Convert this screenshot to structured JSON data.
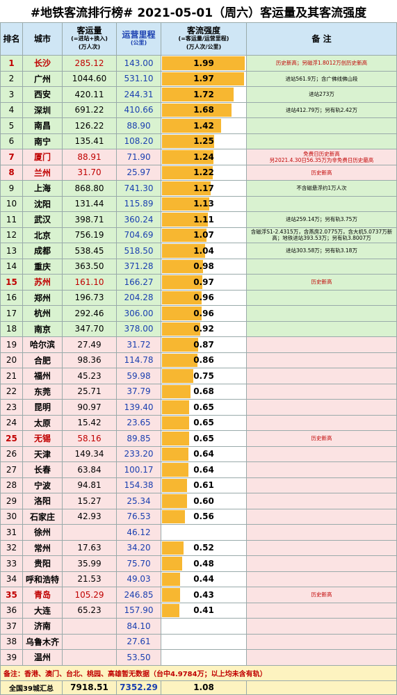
{
  "title": "#地铁客流排行榜# 2021-05-01（周六）客运量及其客流强度",
  "table": {
    "header": [
      [
        "排名"
      ],
      [
        "城市"
      ],
      [
        "客运量",
        "(=进站+换入)",
        "(万人次)"
      ],
      [
        "运营里程",
        "(公里)"
      ],
      [
        "客流强度",
        "(=客运量/运营里程)",
        "(万人次/公里)"
      ],
      [
        "备 注"
      ]
    ],
    "rows": [
      {
        "cells": [
          "1",
          "长沙",
          "285.12",
          "143.00",
          "1.99",
          "历史新高；另磁浮1.8012万创历史新高"
        ],
        "color": "#d9f2d0",
        "red": true
      },
      {
        "cells": [
          "2",
          "广州",
          "1044.60",
          "531.10",
          "1.97",
          "进站561.9万；含广佛线佛山段"
        ],
        "color": "#d9f2d0",
        "red": false
      },
      {
        "cells": [
          "3",
          "西安",
          "420.11",
          "244.31",
          "1.72",
          "进站273万"
        ],
        "color": "#d9f2d0",
        "red": false
      },
      {
        "cells": [
          "4",
          "深圳",
          "691.22",
          "410.66",
          "1.68",
          "进站412.79万；另有轨2.42万"
        ],
        "color": "#d9f2d0",
        "red": false
      },
      {
        "cells": [
          "5",
          "南昌",
          "126.22",
          "88.90",
          "1.42",
          null
        ],
        "color": "#d9f2d0",
        "red": false
      },
      {
        "cells": [
          "6",
          "南宁",
          "135.41",
          "108.20",
          "1.25",
          null
        ],
        "color": "#d9f2d0",
        "red": false
      },
      {
        "cells": [
          "7",
          "厦门",
          "88.91",
          "71.90",
          "1.24",
          "免费日历史新高\n另2021.4.30日56.35万为非免费日历史最高"
        ],
        "color": "#fbe3e3",
        "red": true
      },
      {
        "cells": [
          "8",
          "兰州",
          "31.70",
          "25.97",
          "1.22",
          "历史新高"
        ],
        "color": "#fbe3e3",
        "red": true
      },
      {
        "cells": [
          "9",
          "上海",
          "868.80",
          "741.30",
          "1.17",
          "不含磁悬浮约1万人次"
        ],
        "color": "#d9f2d0",
        "red": false
      },
      {
        "cells": [
          "10",
          "沈阳",
          "131.44",
          "115.89",
          "1.13",
          null
        ],
        "color": "#d9f2d0",
        "red": false
      },
      {
        "cells": [
          "11",
          "武汉",
          "398.71",
          "360.24",
          "1.11",
          "进站259.14万；另有轨3.75万"
        ],
        "color": "#d9f2d0",
        "red": false
      },
      {
        "cells": [
          "12",
          "北京",
          "756.19",
          "704.69",
          "1.07",
          "含磁浮S1-2.4315万，含燕房2.0775万，含大机5.0737万新高；地铁进站393.53万；另有轨3.8007万"
        ],
        "color": "#d9f2d0",
        "red": false
      },
      {
        "cells": [
          "13",
          "成都",
          "538.45",
          "518.50",
          "1.04",
          "进站303.58万；另有轨3.18万"
        ],
        "color": "#d9f2d0",
        "red": false
      },
      {
        "cells": [
          "14",
          "重庆",
          "363.50",
          "371.28",
          "0.98",
          null
        ],
        "color": "#d9f2d0",
        "red": false
      },
      {
        "cells": [
          "15",
          "苏州",
          "161.10",
          "166.27",
          "0.97",
          "历史新高"
        ],
        "color": "#d9f2d0",
        "red": true
      },
      {
        "cells": [
          "16",
          "郑州",
          "196.73",
          "204.28",
          "0.96",
          null
        ],
        "color": "#d9f2d0",
        "red": false
      },
      {
        "cells": [
          "17",
          "杭州",
          "292.46",
          "306.00",
          "0.96",
          null
        ],
        "color": "#d9f2d0",
        "red": false
      },
      {
        "cells": [
          "18",
          "南京",
          "347.70",
          "378.00",
          "0.92",
          null
        ],
        "color": "#d9f2d0",
        "red": false
      },
      {
        "cells": [
          "19",
          "哈尔滨",
          "27.49",
          "31.72",
          "0.87",
          null
        ],
        "color": "#fbe3e3",
        "red": false
      },
      {
        "cells": [
          "20",
          "合肥",
          "98.36",
          "114.78",
          "0.86",
          null
        ],
        "color": "#fbe3e3",
        "red": false
      },
      {
        "cells": [
          "21",
          "福州",
          "45.23",
          "59.98",
          "0.75",
          null
        ],
        "color": "#fbe3e3",
        "red": false
      },
      {
        "cells": [
          "22",
          "东莞",
          "25.71",
          "37.79",
          "0.68",
          null
        ],
        "color": "#fbe3e3",
        "red": false
      },
      {
        "cells": [
          "23",
          "昆明",
          "90.97",
          "139.40",
          "0.65",
          null
        ],
        "color": "#fbe3e3",
        "red": false
      },
      {
        "cells": [
          "24",
          "太原",
          "15.42",
          "23.65",
          "0.65",
          null
        ],
        "color": "#fbe3e3",
        "red": false
      },
      {
        "cells": [
          "25",
          "无锡",
          "58.16",
          "89.85",
          "0.65",
          "历史新高"
        ],
        "color": "#fbe3e3",
        "red": true
      },
      {
        "cells": [
          "26",
          "天津",
          "149.34",
          "233.20",
          "0.64",
          null
        ],
        "color": "#fbe3e3",
        "red": false
      },
      {
        "cells": [
          "27",
          "长春",
          "63.84",
          "100.17",
          "0.64",
          null
        ],
        "color": "#fbe3e3",
        "red": false
      },
      {
        "cells": [
          "28",
          "宁波",
          "94.81",
          "154.38",
          "0.61",
          null
        ],
        "color": "#fbe3e3",
        "red": false
      },
      {
        "cells": [
          "29",
          "洛阳",
          "15.27",
          "25.34",
          "0.60",
          null
        ],
        "color": "#fbe3e3",
        "red": false
      },
      {
        "cells": [
          "30",
          "石家庄",
          "42.93",
          "76.53",
          "0.56",
          null
        ],
        "color": "#fbe3e3",
        "red": false
      },
      {
        "cells": [
          "31",
          "徐州",
          null,
          "46.12",
          null,
          null
        ],
        "color": "#fbe3e3",
        "red": false
      },
      {
        "cells": [
          "32",
          "常州",
          "17.63",
          "34.20",
          "0.52",
          null
        ],
        "color": "#fbe3e3",
        "red": false
      },
      {
        "cells": [
          "33",
          "贵阳",
          "35.99",
          "75.70",
          "0.48",
          null
        ],
        "color": "#fbe3e3",
        "red": false
      },
      {
        "cells": [
          "34",
          "呼和浩特",
          "21.53",
          "49.03",
          "0.44",
          null
        ],
        "color": "#fbe3e3",
        "red": false
      },
      {
        "cells": [
          "35",
          "青岛",
          "105.29",
          "246.85",
          "0.43",
          "历史新高"
        ],
        "color": "#fbe3e3",
        "red": true
      },
      {
        "cells": [
          "36",
          "大连",
          "65.23",
          "157.90",
          "0.41",
          null
        ],
        "color": "#fbe3e3",
        "red": false
      },
      {
        "cells": [
          "37",
          "济南",
          null,
          "84.10",
          null,
          null
        ],
        "color": "#fbe3e3",
        "red": false
      },
      {
        "cells": [
          "38",
          "乌鲁木齐",
          null,
          "27.61",
          null,
          null
        ],
        "color": "#fbe3e3",
        "red": false
      },
      {
        "cells": [
          "39",
          "温州",
          null,
          "53.50",
          null,
          null
        ],
        "color": "#fbe3e3",
        "red": false
      }
    ],
    "footnote": "备注：香港、澳门、台北、桃园、高雄暂无数据（台中4.9784万；以上均未含有轨）",
    "summary": [
      "全国39城汇总",
      "7918.51",
      "7352.29",
      "1.08"
    ]
  }
}
